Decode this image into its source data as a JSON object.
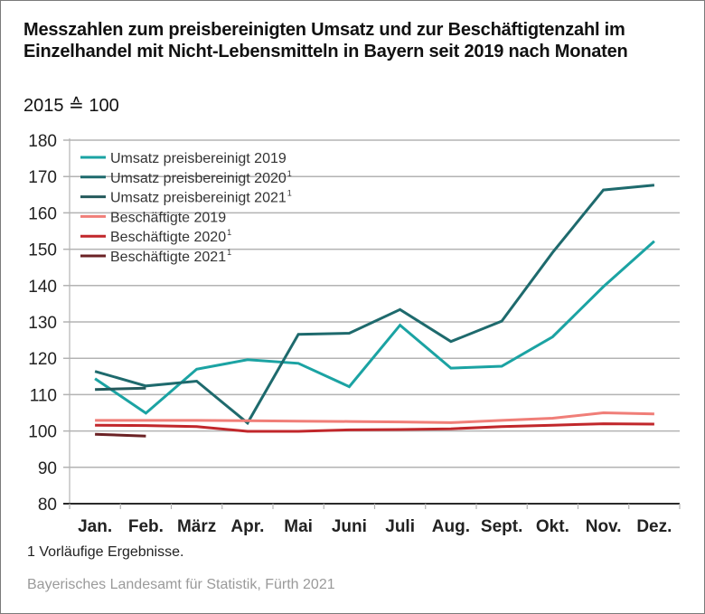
{
  "chart_data": {
    "type": "line",
    "title": "Messzahlen zum preisbereinigten Umsatz und zur Beschäftigtenzahl im Einzelhandel mit Nicht-Lebensmitteln in Bayern seit 2019 nach Monaten",
    "subtitle": "2015 ≙ 100",
    "xlabel": "",
    "ylabel": "",
    "ylim": [
      80,
      180
    ],
    "yticks": [
      80,
      90,
      100,
      110,
      120,
      130,
      140,
      150,
      160,
      170,
      180
    ],
    "grid": true,
    "legend_position": "top-left",
    "categories": [
      "Jan.",
      "Feb.",
      "März",
      "Apr.",
      "Mai",
      "Juni",
      "Juli",
      "Aug.",
      "Sept.",
      "Okt.",
      "Nov.",
      "Dez."
    ],
    "series": [
      {
        "name": "Umsatz preisbereinigt 2019",
        "footnote": "",
        "color": "#1ba3a3",
        "values": [
          114.4,
          104.9,
          117.0,
          119.6,
          118.6,
          112.2,
          129.1,
          117.3,
          117.8,
          125.9,
          139.7,
          152.2
        ]
      },
      {
        "name": "Umsatz preisbereinigt 2020",
        "footnote": "1",
        "color": "#1e6a6d",
        "values": [
          116.4,
          112.4,
          113.7,
          102.2,
          126.6,
          126.9,
          133.4,
          124.6,
          130.2,
          149.1,
          166.3,
          167.6
        ]
      },
      {
        "name": "Umsatz preisbereinigt 2021",
        "footnote": "1",
        "color": "#245a5c",
        "values": [
          111.4,
          111.8
        ]
      },
      {
        "name": "Beschäftigte 2019",
        "footnote": "",
        "color": "#f07e78",
        "values": [
          102.9,
          102.9,
          102.9,
          102.8,
          102.7,
          102.6,
          102.5,
          102.3,
          102.9,
          103.5,
          105.0,
          104.7
        ]
      },
      {
        "name": "Beschäftigte 2020",
        "footnote": "1",
        "color": "#c1272b",
        "values": [
          101.6,
          101.5,
          101.2,
          99.9,
          99.9,
          100.3,
          100.4,
          100.6,
          101.2,
          101.6,
          102.0,
          101.9
        ]
      },
      {
        "name": "Beschäftigte 2021",
        "footnote": "1",
        "color": "#6b2225",
        "values": [
          99.1,
          98.6
        ]
      }
    ]
  },
  "footnote": "1  Vorläufige Ergebnisse.",
  "source": "Bayerisches Landesamt für Statistik, Fürth 2021"
}
